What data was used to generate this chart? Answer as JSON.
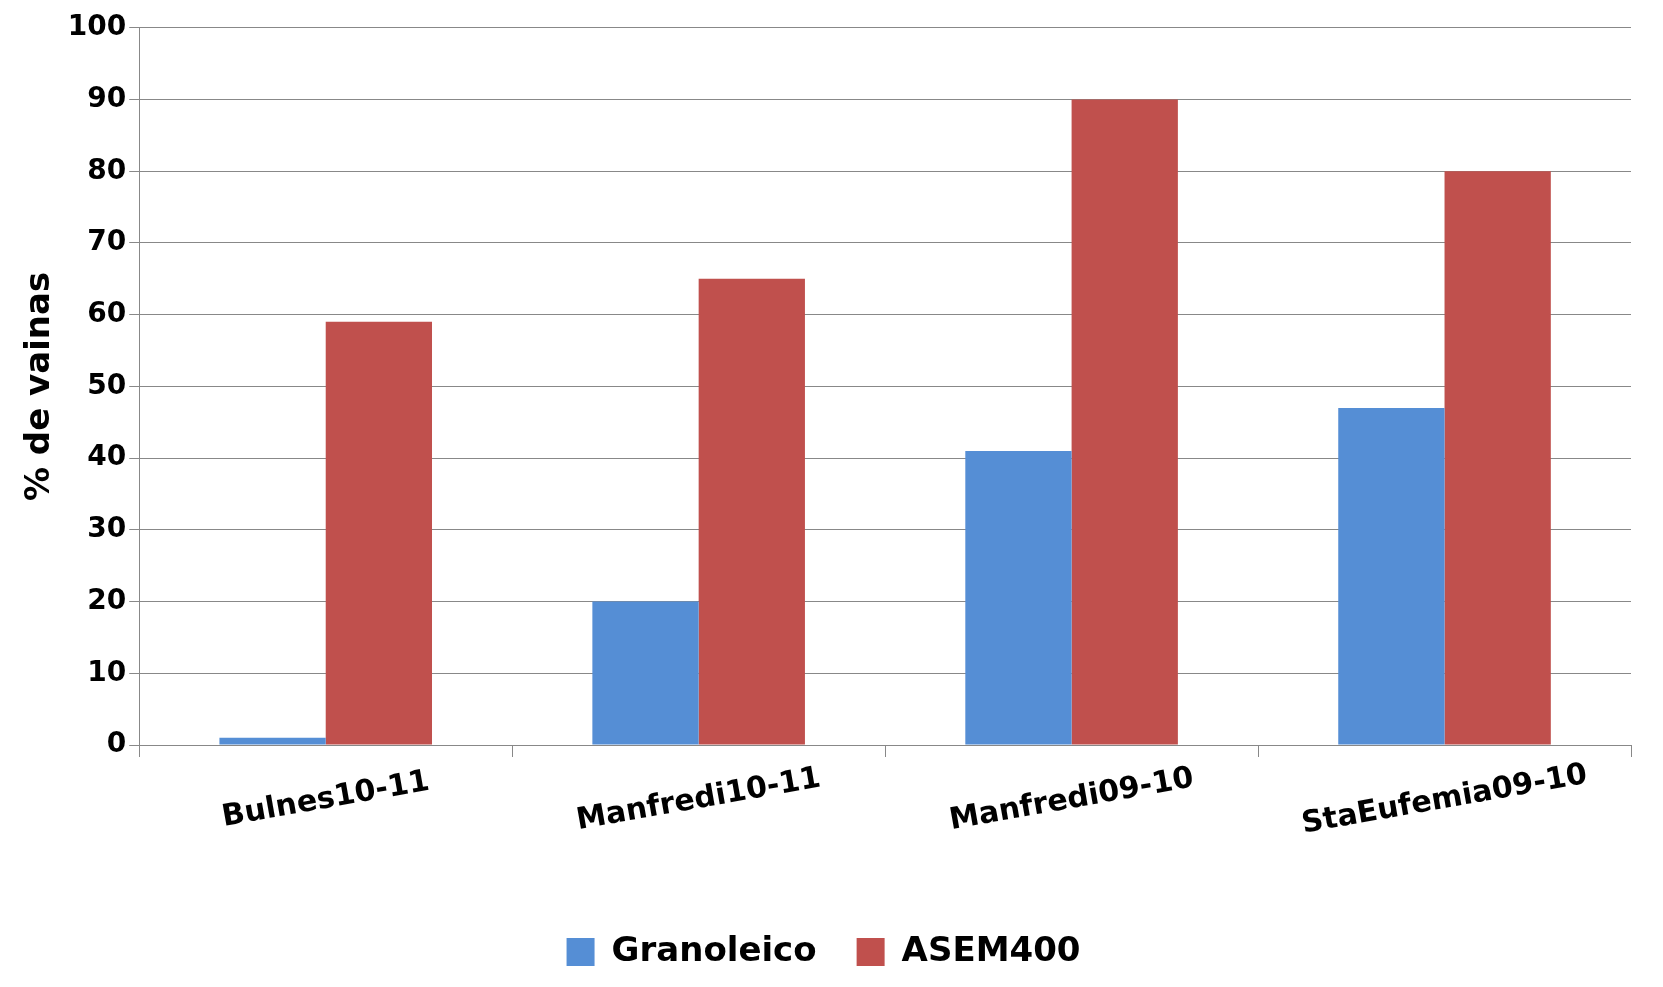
{
  "chart_data": {
    "type": "bar",
    "ylabel": "% de vainas",
    "categories": [
      "Bulnes10-11",
      "Manfredi10-11",
      "Manfredi09-10",
      "StaEufemia09-10"
    ],
    "series": [
      {
        "name": "Granoleico",
        "color": "#558ed5",
        "values": [
          1,
          20,
          41,
          47
        ]
      },
      {
        "name": "ASEM400",
        "color": "#c0504d",
        "values": [
          59,
          65,
          90,
          80
        ]
      }
    ],
    "ylim": [
      0,
      100
    ],
    "yticks": [
      0,
      10,
      20,
      30,
      40,
      50,
      60,
      70,
      80,
      90,
      100
    ],
    "grid": "y",
    "legend": "bottom"
  }
}
